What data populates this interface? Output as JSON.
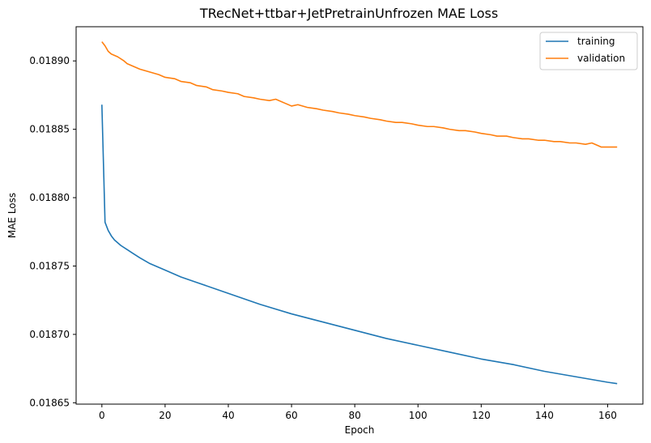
{
  "chart_data": {
    "type": "line",
    "title": "TRecNet+ttbar+JetPretrainUnfrozen MAE Loss",
    "xlabel": "Epoch",
    "ylabel": "MAE Loss",
    "xlim": [
      -8.15,
      171.15
    ],
    "ylim": [
      0.018649,
      0.018925
    ],
    "xticks": [
      0,
      20,
      40,
      60,
      80,
      100,
      120,
      140,
      160
    ],
    "xtick_labels": [
      "0",
      "20",
      "40",
      "60",
      "80",
      "100",
      "120",
      "140",
      "160"
    ],
    "yticks": [
      0.01865,
      0.0187,
      0.01875,
      0.0188,
      0.01885,
      0.0189
    ],
    "ytick_labels": [
      "0.01865",
      "0.01870",
      "0.01875",
      "0.01880",
      "0.01885",
      "0.01890"
    ],
    "grid": false,
    "legend_position": "top-right",
    "series": [
      {
        "name": "training",
        "color": "#1f77b4",
        "x": [
          0,
          1,
          2,
          3,
          4,
          5,
          6,
          8,
          10,
          12,
          15,
          20,
          25,
          30,
          40,
          50,
          60,
          70,
          80,
          90,
          100,
          110,
          120,
          130,
          140,
          150,
          160,
          163
        ],
        "y": [
          0.018868,
          0.018782,
          0.018776,
          0.018772,
          0.018769,
          0.018767,
          0.018765,
          0.018762,
          0.018759,
          0.018756,
          0.018752,
          0.018747,
          0.018742,
          0.018738,
          0.01873,
          0.018722,
          0.018715,
          0.018709,
          0.018703,
          0.018697,
          0.018692,
          0.018687,
          0.018682,
          0.018678,
          0.018673,
          0.018669,
          0.018665,
          0.018664
        ]
      },
      {
        "name": "validation",
        "color": "#ff7f0e",
        "x": [
          0,
          1,
          2,
          3,
          5,
          7,
          8,
          10,
          12,
          15,
          18,
          20,
          23,
          25,
          28,
          30,
          33,
          35,
          38,
          40,
          43,
          45,
          48,
          50,
          53,
          55,
          58,
          60,
          62,
          65,
          68,
          70,
          73,
          75,
          78,
          80,
          83,
          85,
          88,
          90,
          93,
          95,
          98,
          100,
          103,
          105,
          108,
          110,
          113,
          115,
          118,
          120,
          123,
          125,
          128,
          130,
          133,
          135,
          138,
          140,
          143,
          145,
          148,
          150,
          153,
          155,
          157,
          158,
          160,
          163
        ],
        "y": [
          0.018914,
          0.018911,
          0.018907,
          0.018905,
          0.018903,
          0.0189,
          0.018898,
          0.018896,
          0.018894,
          0.018892,
          0.01889,
          0.018888,
          0.018887,
          0.018885,
          0.018884,
          0.018882,
          0.018881,
          0.018879,
          0.018878,
          0.018877,
          0.018876,
          0.018874,
          0.018873,
          0.018872,
          0.018871,
          0.018872,
          0.018869,
          0.018867,
          0.018868,
          0.018866,
          0.018865,
          0.018864,
          0.018863,
          0.018862,
          0.018861,
          0.01886,
          0.018859,
          0.018858,
          0.018857,
          0.018856,
          0.018855,
          0.018855,
          0.018854,
          0.018853,
          0.018852,
          0.018852,
          0.018851,
          0.01885,
          0.018849,
          0.018849,
          0.018848,
          0.018847,
          0.018846,
          0.018845,
          0.018845,
          0.018844,
          0.018843,
          0.018843,
          0.018842,
          0.018842,
          0.018841,
          0.018841,
          0.01884,
          0.01884,
          0.018839,
          0.01884,
          0.018838,
          0.018837,
          0.018837,
          0.018837
        ]
      }
    ]
  }
}
